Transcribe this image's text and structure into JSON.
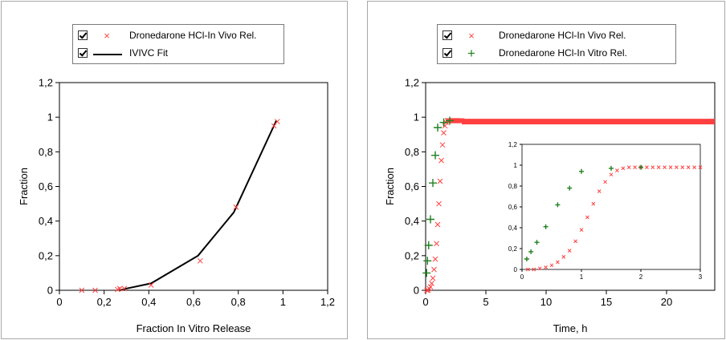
{
  "chart_data": [
    {
      "type": "scatter",
      "xlabel": "Fraction In Vitro Release",
      "ylabel": "Fraction",
      "xlim": [
        0,
        1.2
      ],
      "ylim": [
        0,
        1.2
      ],
      "xticks": [
        "0",
        "0,2",
        "0,4",
        "0,6",
        "0,8",
        "1",
        "1,2"
      ],
      "yticks": [
        "0",
        "0,2",
        "0,4",
        "0,6",
        "0,8",
        "1",
        "1,2"
      ],
      "legend_position": "top-center",
      "series": [
        {
          "name": "Dronedarone HCl-In Vivo Rel.",
          "marker": "x",
          "color": "#ff4040",
          "x": [
            0.1,
            0.16,
            0.26,
            0.27,
            0.29,
            0.41,
            0.63,
            0.79,
            0.96,
            0.975
          ],
          "y": [
            0.0,
            0.0,
            0.005,
            0.01,
            0.01,
            0.03,
            0.17,
            0.48,
            0.95,
            0.975
          ]
        },
        {
          "name": "IVIVC Fit",
          "marker": "line",
          "color": "#000000",
          "x": [
            0.27,
            0.3,
            0.41,
            0.62,
            0.78,
            0.97
          ],
          "y": [
            0.0,
            0.01,
            0.04,
            0.2,
            0.45,
            0.98
          ]
        }
      ]
    },
    {
      "type": "scatter",
      "xlabel": "Time, h",
      "ylabel": "Fraction",
      "xlim": [
        0,
        24
      ],
      "ylim": [
        0,
        1.2
      ],
      "xticks": [
        "0",
        "5",
        "10",
        "15",
        "20"
      ],
      "yticks": [
        "0",
        "0,2",
        "0,4",
        "0,6",
        "0,8",
        "1",
        "1,2"
      ],
      "legend_position": "top-center",
      "series": [
        {
          "name": "Dronedarone HCl-In Vivo Rel.",
          "marker": "x",
          "color": "#ff4040",
          "x": [
            0.1,
            0.2,
            0.3,
            0.4,
            0.5,
            0.6,
            0.7,
            0.8,
            0.9,
            1.0,
            1.1,
            1.2,
            1.3,
            1.4,
            1.5,
            1.6,
            1.7,
            1.8,
            1.9,
            2.0,
            2.1,
            2.2,
            2.3,
            2.4,
            2.5,
            2.6,
            2.7,
            2.8,
            2.9,
            3.0
          ],
          "y": [
            0.0,
            0.0,
            0.01,
            0.02,
            0.04,
            0.07,
            0.12,
            0.18,
            0.27,
            0.38,
            0.5,
            0.63,
            0.75,
            0.84,
            0.91,
            0.95,
            0.97,
            0.98,
            0.98,
            0.98,
            0.98,
            0.98,
            0.98,
            0.98,
            0.98,
            0.98,
            0.98,
            0.98,
            0.98,
            0.98
          ],
          "plateau": {
            "y": 0.975,
            "x_from": 3.0,
            "x_to": 24
          }
        },
        {
          "name": "Dronedarone HCl-In Vitro Rel.",
          "marker": "plus",
          "color": "#208020",
          "x": [
            0.08,
            0.15,
            0.25,
            0.4,
            0.6,
            0.8,
            1.0,
            1.5,
            2.0
          ],
          "y": [
            0.1,
            0.17,
            0.26,
            0.41,
            0.62,
            0.78,
            0.94,
            0.97,
            0.98
          ]
        }
      ],
      "inset": {
        "xlim": [
          0,
          3
        ],
        "ylim": [
          0,
          1.2
        ],
        "xticks": [
          "0",
          "1",
          "2",
          "3"
        ],
        "yticks": [
          "0",
          "0,2",
          "0,4",
          "0,6",
          "0,8",
          "1",
          "1,2"
        ]
      }
    }
  ]
}
